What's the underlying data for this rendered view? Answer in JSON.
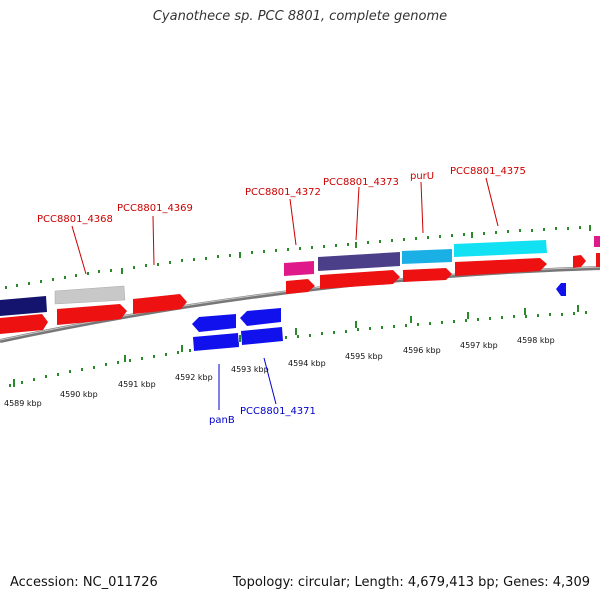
{
  "title": "Cyanothece sp. PCC 8801, complete genome",
  "footer": {
    "accession": "Accession: NC_011726",
    "summary": "Topology: circular; Length: 4,679,413 bp; Genes: 4,309"
  },
  "colors": {
    "label_top": "#cc0000",
    "label_bottom": "#0000cc",
    "backbone": "#808080",
    "ticks": "#2a8a2a"
  },
  "kbp_labels": [
    "4589 kbp",
    "4590 kbp",
    "4591 kbp",
    "4592 kbp",
    "4593 kbp",
    "4594 kbp",
    "4595 kbp",
    "4596 kbp",
    "4597 kbp",
    "4598 kbp"
  ],
  "gene_labels_top": [
    "PCC8801_4368",
    "PCC8801_4369",
    "PCC8801_4372",
    "PCC8801_4373",
    "purU",
    "PCC8801_4375"
  ],
  "gene_labels_bottom": [
    "panB",
    "PCC8801_4371"
  ],
  "features": [
    {
      "name": "feature-navy",
      "color": "#14146e"
    },
    {
      "name": "feature-gray",
      "color": "#c0c0c0"
    },
    {
      "name": "feature-magenta",
      "color": "#e0198a"
    },
    {
      "name": "feature-slateblue",
      "color": "#4b3f8a"
    },
    {
      "name": "feature-skyblue",
      "color": "#1ab0e6"
    },
    {
      "name": "feature-cyan",
      "color": "#11e1f2"
    },
    {
      "name": "cds-red",
      "color": "#ee1111"
    },
    {
      "name": "cds-blue",
      "color": "#1111ee"
    }
  ]
}
